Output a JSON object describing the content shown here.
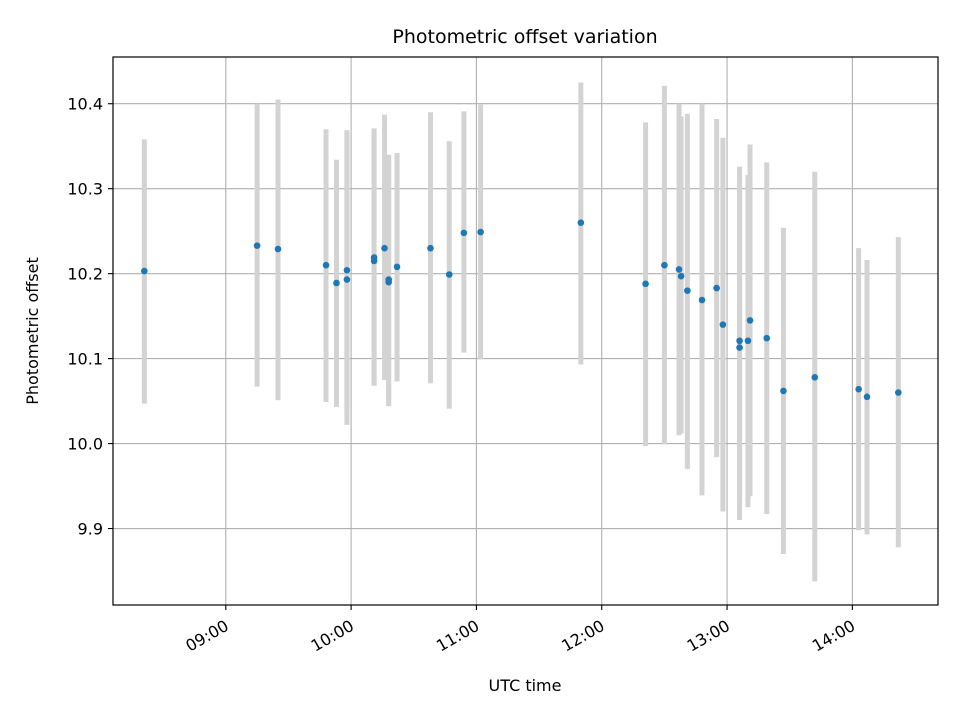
{
  "chart_data": {
    "type": "scatter",
    "title": "Photometric offset variation",
    "xlabel": "UTC time",
    "ylabel": "Photometric offset",
    "x_unit": "UTC time (HH:MM)",
    "xlim": [
      "08:06",
      "14:41"
    ],
    "ylim": [
      9.81,
      10.455
    ],
    "x_ticks": [
      "09:00",
      "10:00",
      "11:00",
      "12:00",
      "13:00",
      "14:00"
    ],
    "y_ticks": [
      "9.9",
      "10.0",
      "10.1",
      "10.2",
      "10.3",
      "10.4"
    ],
    "grid": true,
    "legend": "none",
    "series": [
      {
        "marker_color": "#1f77b4",
        "errorbar_color": "#d3d3d3",
        "points": [
          {
            "x": "08:21",
            "y": 10.203,
            "lo": 10.047,
            "hi": 10.358
          },
          {
            "x": "09:15",
            "y": 10.233,
            "lo": 10.067,
            "hi": 10.4
          },
          {
            "x": "09:25",
            "y": 10.229,
            "lo": 10.051,
            "hi": 10.405
          },
          {
            "x": "09:48",
            "y": 10.21,
            "lo": 10.049,
            "hi": 10.37
          },
          {
            "x": "09:53",
            "y": 10.189,
            "lo": 10.043,
            "hi": 10.334
          },
          {
            "x": "09:58",
            "y": 10.193,
            "lo": 10.022,
            "hi": 10.369
          },
          {
            "x": "09:58",
            "y": 10.204,
            "lo": 10.04,
            "hi": 10.368
          },
          {
            "x": "10:11",
            "y": 10.215,
            "lo": 10.068,
            "hi": 10.371
          },
          {
            "x": "10:11",
            "y": 10.219,
            "lo": 10.069,
            "hi": 10.37
          },
          {
            "x": "10:16",
            "y": 10.23,
            "lo": 10.075,
            "hi": 10.387
          },
          {
            "x": "10:18",
            "y": 10.19,
            "lo": 10.044,
            "hi": 10.339
          },
          {
            "x": "10:18",
            "y": 10.193,
            "lo": 10.046,
            "hi": 10.34
          },
          {
            "x": "10:22",
            "y": 10.208,
            "lo": 10.073,
            "hi": 10.342
          },
          {
            "x": "10:38",
            "y": 10.23,
            "lo": 10.071,
            "hi": 10.39
          },
          {
            "x": "10:47",
            "y": 10.199,
            "lo": 10.041,
            "hi": 10.356
          },
          {
            "x": "10:54",
            "y": 10.248,
            "lo": 10.107,
            "hi": 10.391
          },
          {
            "x": "11:02",
            "y": 10.249,
            "lo": 10.099,
            "hi": 10.399
          },
          {
            "x": "11:50",
            "y": 10.26,
            "lo": 10.093,
            "hi": 10.425
          },
          {
            "x": "12:21",
            "y": 10.188,
            "lo": 9.997,
            "hi": 10.378
          },
          {
            "x": "12:30",
            "y": 10.21,
            "lo": 9.999,
            "hi": 10.421
          },
          {
            "x": "12:37",
            "y": 10.205,
            "lo": 10.01,
            "hi": 10.4
          },
          {
            "x": "12:38",
            "y": 10.197,
            "lo": 10.012,
            "hi": 10.385
          },
          {
            "x": "12:41",
            "y": 10.18,
            "lo": 9.97,
            "hi": 10.388
          },
          {
            "x": "12:48",
            "y": 10.169,
            "lo": 9.939,
            "hi": 10.4
          },
          {
            "x": "12:55",
            "y": 10.183,
            "lo": 9.984,
            "hi": 10.382
          },
          {
            "x": "12:58",
            "y": 10.14,
            "lo": 9.92,
            "hi": 10.36
          },
          {
            "x": "13:06",
            "y": 10.113,
            "lo": 9.91,
            "hi": 10.326
          },
          {
            "x": "13:06",
            "y": 10.121,
            "lo": 9.93,
            "hi": 10.312
          },
          {
            "x": "13:10",
            "y": 10.121,
            "lo": 9.925,
            "hi": 10.316
          },
          {
            "x": "13:11",
            "y": 10.145,
            "lo": 9.938,
            "hi": 10.352
          },
          {
            "x": "13:19",
            "y": 10.124,
            "lo": 9.917,
            "hi": 10.331
          },
          {
            "x": "13:27",
            "y": 10.062,
            "lo": 9.87,
            "hi": 10.254
          },
          {
            "x": "13:42",
            "y": 10.078,
            "lo": 9.838,
            "hi": 10.32
          },
          {
            "x": "14:03",
            "y": 10.064,
            "lo": 9.898,
            "hi": 10.23
          },
          {
            "x": "14:07",
            "y": 10.055,
            "lo": 9.893,
            "hi": 10.216
          },
          {
            "x": "14:22",
            "y": 10.06,
            "lo": 9.878,
            "hi": 10.243
          }
        ]
      }
    ]
  }
}
